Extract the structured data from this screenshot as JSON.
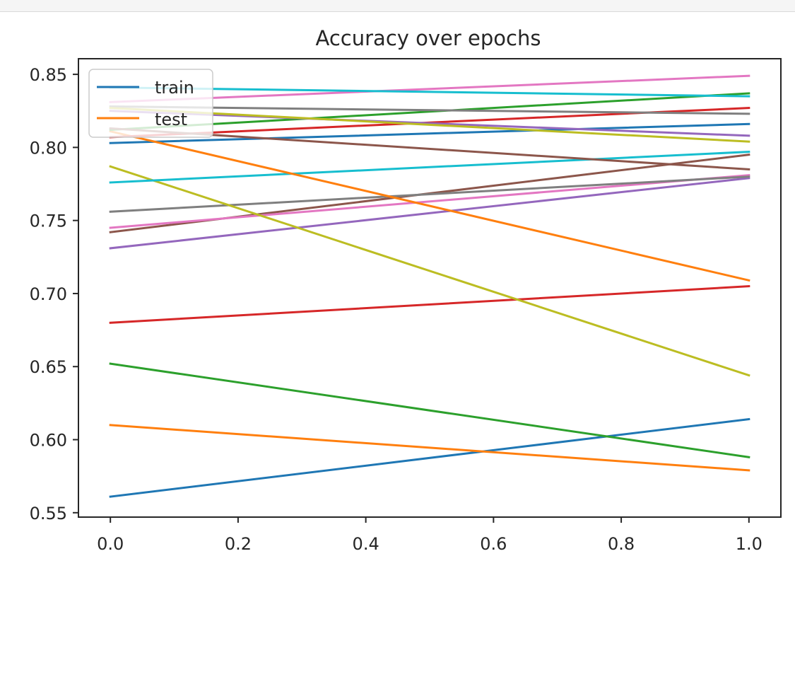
{
  "colors": {
    "palette": [
      "#1f77b4",
      "#ff7f0e",
      "#2ca02c",
      "#d62728",
      "#9467bd",
      "#8c564b",
      "#e377c2",
      "#7f7f7f",
      "#bcbd22",
      "#17becf"
    ],
    "axis": "#262626",
    "background": "#ffffff"
  },
  "chart_data": {
    "type": "line",
    "title": "Accuracy over epochs",
    "xlabel": "",
    "ylabel": "",
    "xlim": [
      -0.05,
      1.05
    ],
    "ylim": [
      0.547,
      0.8607
    ],
    "x": [
      0.0,
      1.0
    ],
    "xticks": [
      "0.0",
      "0.2",
      "0.4",
      "0.6",
      "0.8",
      "1.0"
    ],
    "yticks": [
      "0.55",
      "0.60",
      "0.65",
      "0.70",
      "0.75",
      "0.80",
      "0.85"
    ],
    "grid": false,
    "legend_position": "upper left",
    "legend": [
      "train",
      "test"
    ],
    "series": [
      {
        "name": "train",
        "values": [
          0.561,
          0.614
        ]
      },
      {
        "name": "test",
        "values": [
          0.61,
          0.579
        ]
      },
      {
        "values": [
          0.652,
          0.588
        ]
      },
      {
        "values": [
          0.68,
          0.705
        ]
      },
      {
        "values": [
          0.731,
          0.779
        ]
      },
      {
        "values": [
          0.742,
          0.795
        ]
      },
      {
        "values": [
          0.745,
          0.781
        ]
      },
      {
        "values": [
          0.756,
          0.78
        ]
      },
      {
        "values": [
          0.787,
          0.644
        ]
      },
      {
        "values": [
          0.776,
          0.797
        ]
      },
      {
        "values": [
          0.803,
          0.816
        ]
      },
      {
        "values": [
          0.811,
          0.709
        ]
      },
      {
        "values": [
          0.812,
          0.837
        ]
      },
      {
        "values": [
          0.807,
          0.827
        ]
      },
      {
        "values": [
          0.825,
          0.808
        ]
      },
      {
        "values": [
          0.813,
          0.785
        ]
      },
      {
        "values": [
          0.831,
          0.849
        ]
      },
      {
        "values": [
          0.828,
          0.823
        ]
      },
      {
        "values": [
          0.827,
          0.804
        ]
      },
      {
        "values": [
          0.841,
          0.835
        ]
      }
    ]
  }
}
